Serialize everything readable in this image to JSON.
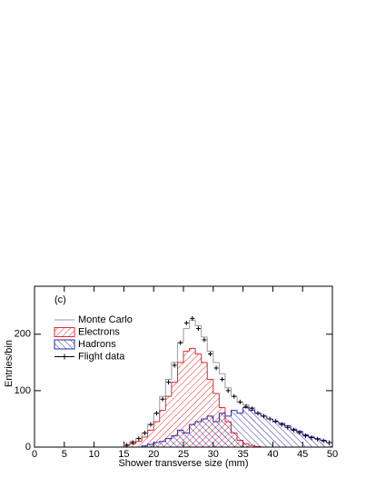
{
  "chart_data": {
    "type": "histogram",
    "panel_label": "(c)",
    "x_label": "Shower transverse size (mm)",
    "y_label": "Entries/bin",
    "bins": [
      0,
      1,
      2,
      3,
      4,
      5,
      6,
      7,
      8,
      9,
      10,
      11,
      12,
      13,
      14,
      15,
      16,
      17,
      18,
      19,
      20,
      21,
      22,
      23,
      24,
      25,
      26,
      27,
      28,
      29,
      30,
      31,
      32,
      33,
      34,
      35,
      36,
      37,
      38,
      39,
      40,
      41,
      42,
      43,
      44,
      45,
      46,
      47,
      48,
      49,
      50
    ],
    "xlim": [
      0,
      50
    ],
    "xticks": [
      0,
      5,
      10,
      15,
      20,
      25,
      30,
      35,
      40,
      45,
      50
    ],
    "ylim": [
      0,
      285
    ],
    "yticks": [
      0,
      100,
      200
    ],
    "legend": "upper left",
    "series": [
      {
        "name": "Monte Carlo",
        "color": "#9a9a9a",
        "style": "outline",
        "values": [
          0,
          0,
          0,
          0,
          0,
          0,
          0,
          0,
          0,
          0,
          0,
          0,
          0,
          0,
          0,
          5,
          10,
          15,
          25,
          40,
          60,
          90,
          120,
          150,
          185,
          210,
          225,
          215,
          195,
          170,
          150,
          130,
          105,
          90,
          80,
          75,
          70,
          60,
          55,
          50,
          45,
          40,
          35,
          30,
          25,
          20,
          18,
          15,
          12,
          8
        ]
      },
      {
        "name": "Electrons",
        "color": "#e8282b",
        "style": "hatch",
        "values": [
          0,
          0,
          0,
          0,
          0,
          0,
          0,
          0,
          0,
          0,
          0,
          0,
          0,
          0,
          0,
          3,
          6,
          10,
          18,
          30,
          45,
          65,
          90,
          115,
          150,
          170,
          175,
          165,
          150,
          120,
          95,
          70,
          45,
          25,
          12,
          6,
          3,
          1,
          0,
          0,
          0,
          0,
          0,
          0,
          0,
          0,
          0,
          0,
          0,
          0
        ]
      },
      {
        "name": "Hadrons",
        "color": "#2a2ab0",
        "style": "hatch",
        "values": [
          0,
          0,
          0,
          0,
          0,
          0,
          0,
          0,
          0,
          0,
          0,
          0,
          0,
          0,
          0,
          0,
          0,
          0,
          2,
          5,
          8,
          10,
          15,
          20,
          30,
          25,
          40,
          45,
          50,
          55,
          45,
          60,
          55,
          65,
          60,
          70,
          65,
          60,
          55,
          50,
          45,
          42,
          38,
          32,
          28,
          22,
          18,
          15,
          12,
          8
        ]
      },
      {
        "name": "Flight data",
        "color": "#000000",
        "style": "points",
        "values": [
          null,
          null,
          null,
          null,
          null,
          null,
          null,
          null,
          null,
          null,
          null,
          null,
          null,
          null,
          null,
          3,
          8,
          15,
          25,
          40,
          60,
          85,
          115,
          145,
          185,
          220,
          228,
          210,
          190,
          165,
          140,
          120,
          100,
          90,
          80,
          72,
          68,
          60,
          55,
          50,
          46,
          40,
          35,
          30,
          26,
          20,
          17,
          14,
          11,
          8
        ]
      }
    ]
  }
}
